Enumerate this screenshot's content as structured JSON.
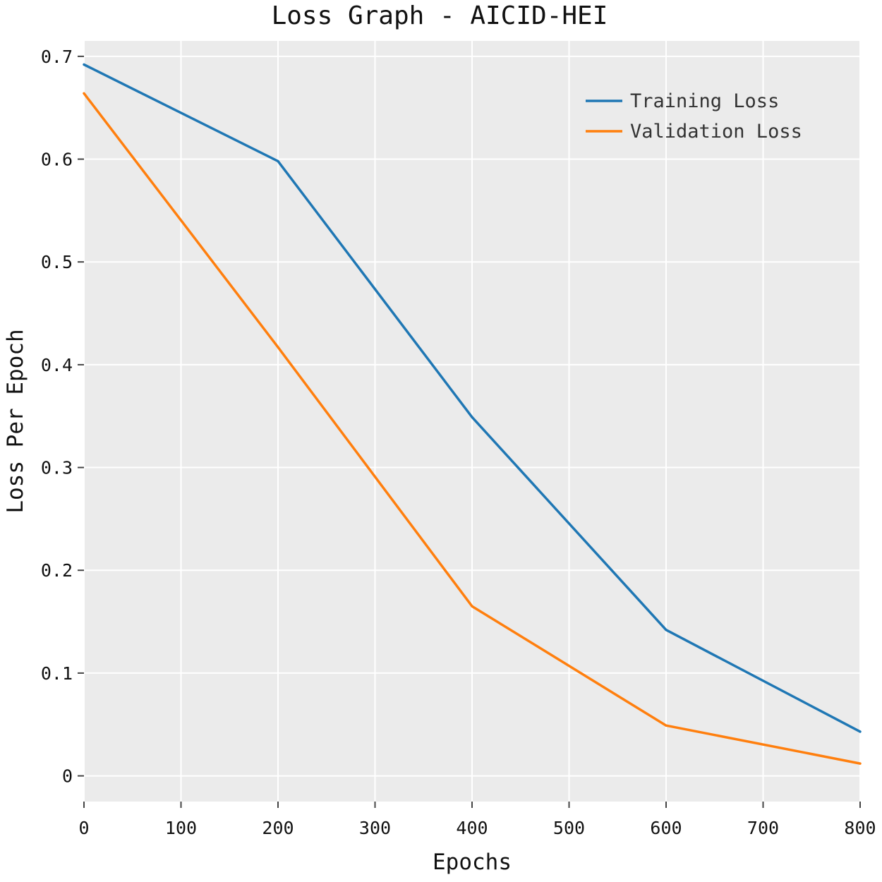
{
  "chart_data": {
    "type": "line",
    "title": "Loss Graph - AICID-HEI",
    "xlabel": "Epochs",
    "ylabel": "Loss Per Epoch",
    "xlim": [
      0,
      800
    ],
    "ylim": [
      -0.025,
      0.715
    ],
    "x_ticks": [
      0,
      100,
      200,
      300,
      400,
      500,
      600,
      700,
      800
    ],
    "x_tick_labels": [
      "0",
      "100",
      "200",
      "300",
      "400",
      "500",
      "600",
      "700",
      "800"
    ],
    "y_ticks": [
      0,
      0.1,
      0.2,
      0.3,
      0.4,
      0.5,
      0.6,
      0.7
    ],
    "y_tick_labels": [
      "0",
      "0.1",
      "0.2",
      "0.3",
      "0.4",
      "0.5",
      "0.6",
      "0.7"
    ],
    "grid": true,
    "legend_position": "top-right",
    "series": [
      {
        "name": "Training Loss",
        "color": "#1f77b4",
        "x": [
          0,
          200,
          400,
          600,
          800
        ],
        "values": [
          0.692,
          0.598,
          0.349,
          0.142,
          0.043
        ]
      },
      {
        "name": "Validation Loss",
        "color": "#ff7f0e",
        "x": [
          0,
          200,
          400,
          600,
          800
        ],
        "values": [
          0.664,
          0.417,
          0.165,
          0.049,
          0.012
        ]
      }
    ]
  },
  "colors": {
    "plot_background": "#ebebeb",
    "grid": "#ffffff",
    "axis": "#444444"
  }
}
